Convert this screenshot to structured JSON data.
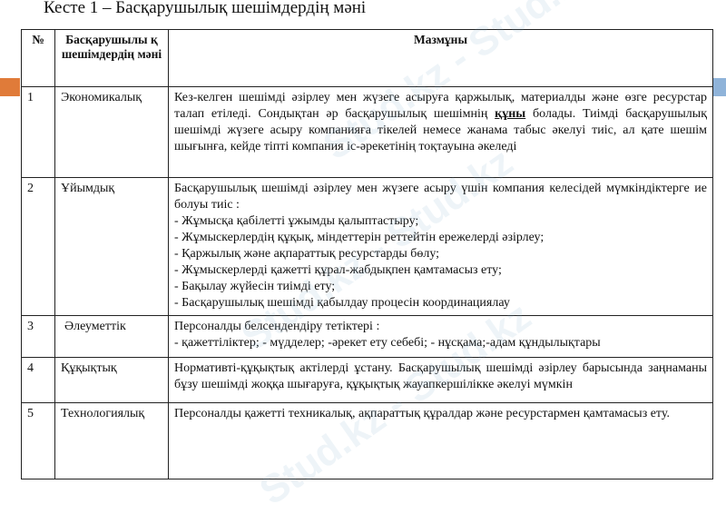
{
  "title": "Кесте 1 – Басқарушылық шешімдердің мәні",
  "watermark": "Stud.kz",
  "colors": {
    "left_accent": "#e07b39",
    "right_accent": "#8fb3d9"
  },
  "table": {
    "headers": [
      "№",
      "Басқарушылы қ шешімдердің мәні",
      "Мазмұны"
    ],
    "rows": [
      {
        "num": "1",
        "name": "Экономикалық",
        "content_before": "Кез-келген шешімді әзірлеу мен жүзеге асыруға қаржылық, материалды және өзге ресурстар талап етіледі. Сондықтан әр басқарушылық шешімнің ",
        "content_bold": "құны",
        "content_after": " болады. Тиімді басқарушылық шешімді жүзеге асыру компанияға тікелей немесе жанама табыс әкелуі тиіс, ал қате шешім шығынға, кейде тіпті компания іс-әрекетінің тоқтауына әкеледі"
      },
      {
        "num": "2",
        "name": "Ұйымдық",
        "lines": [
          "Басқарушылық шешімді әзірлеу мен жүзеге асыру үшін компания келесідей мүмкіндіктерге ие болуы тиіс :",
          "- Жұмысқа қабілетті ұжымды қалыптастыру;",
          "- Жұмыскерлердің құқық, міндеттерін реттейтін ережелерді әзірлеу;",
          "- Қаржылық және ақпараттық ресурстарды бөлу;",
          "- Жұмыскерлерді қажетті құрал-жабдықпен қамтамасыз ету;",
          "- Бақылау жүйесін тиімді ету;",
          "- Басқарушылық шешімді қабылдау процесін координациялау"
        ]
      },
      {
        "num": "3",
        "name": "Әлеуметтік",
        "lines": [
          "Персоналды белсендендіру тетіктері :",
          "- қажеттіліктер; - мүдделер; -әрекет ету себебі; - нұсқама;-адам құндылықтары"
        ]
      },
      {
        "num": "4",
        "name": "Құқықтық",
        "content": "Нормативті-құқықтық актілерді ұстану. Басқарушылық шешімді әзірлеу барысында заңнаманы бұзу шешімді жоққа шығаруға, құқықтық жауапкершілікке әкелуі мүмкін"
      },
      {
        "num": "5",
        "name": "Технологиялық",
        "content": "Персоналды қажетті техникалық, ақпараттық құралдар және ресурстармен қамтамасыз ету."
      }
    ]
  }
}
